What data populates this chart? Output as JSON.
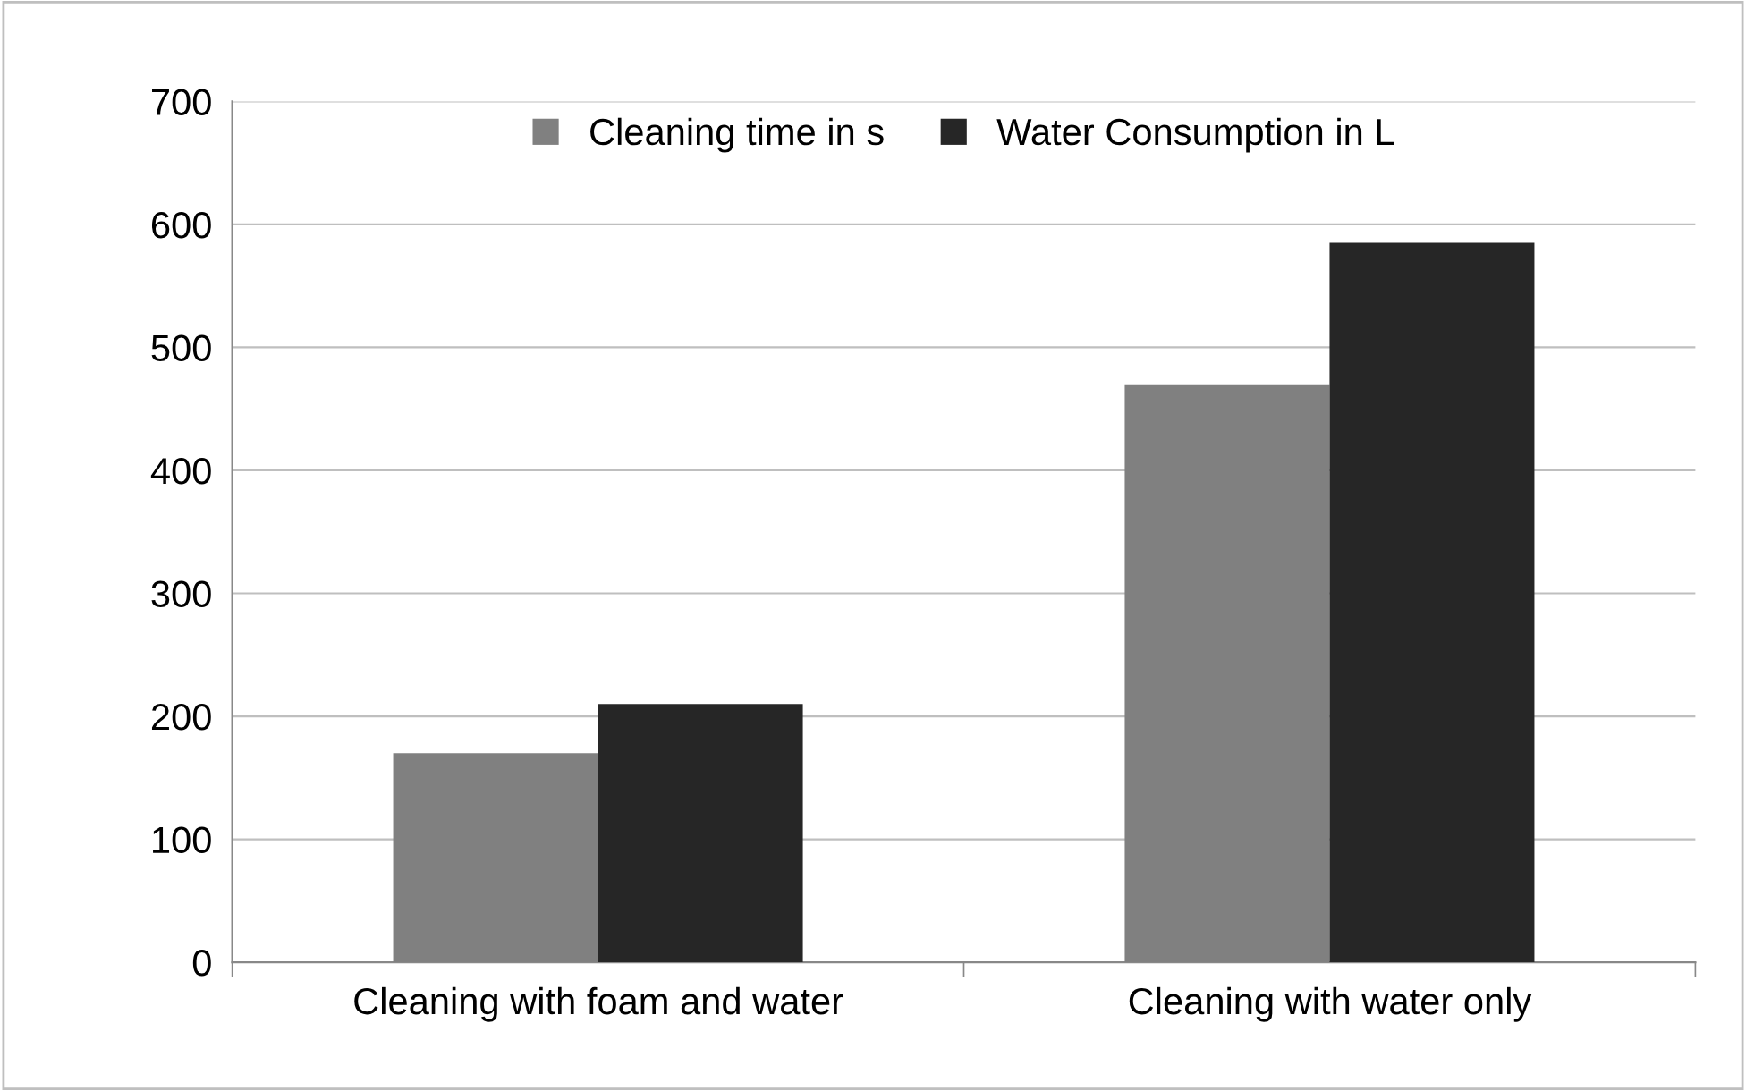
{
  "chart_data": {
    "type": "bar",
    "categories": [
      "Cleaning with foam and water",
      "Cleaning with water only"
    ],
    "series": [
      {
        "name": "Cleaning time in s",
        "color": "#808080",
        "values": [
          170,
          470
        ]
      },
      {
        "name": "Water Consumption in L",
        "color": "#262626",
        "values": [
          210,
          585
        ]
      }
    ],
    "ylim": [
      0,
      700
    ],
    "yticks": [
      0,
      100,
      200,
      300,
      400,
      500,
      600,
      700
    ],
    "grid": "y",
    "legend": "top"
  }
}
